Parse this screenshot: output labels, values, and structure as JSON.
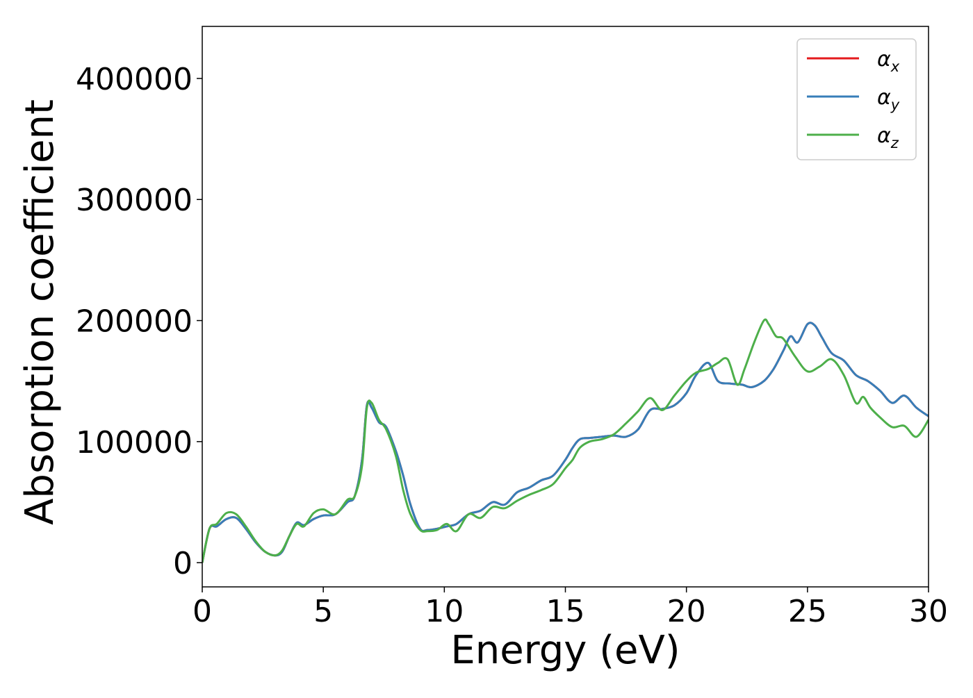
{
  "chart_data": {
    "type": "line",
    "xlabel": "Energy (eV)",
    "ylabel": "Absorption coefficient",
    "xlim": [
      0,
      30
    ],
    "ylim": [
      -20000,
      443000
    ],
    "x_ticks": [
      0,
      5,
      10,
      15,
      20,
      25,
      30
    ],
    "y_ticks": [
      0,
      100000,
      200000,
      300000,
      400000
    ],
    "x_tick_labels": [
      "0",
      "5",
      "10",
      "15",
      "20",
      "25",
      "30"
    ],
    "y_tick_labels": [
      "0",
      "100000",
      "200000",
      "300000",
      "400000"
    ],
    "grid": false,
    "legend_position": "top-right",
    "series": [
      {
        "name": "α_x",
        "legend_symbol": "α",
        "legend_subscript": "x",
        "color": "#e41a1c",
        "x": [
          0,
          0.3,
          0.6,
          1.0,
          1.4,
          1.8,
          2.2,
          2.6,
          3.0,
          3.3,
          3.6,
          3.9,
          4.2,
          4.6,
          5.0,
          5.5,
          6.0,
          6.3,
          6.6,
          6.8,
          7.0,
          7.3,
          7.6,
          8.0,
          8.3,
          8.6,
          9.0,
          9.3,
          9.7,
          10.1,
          10.5,
          11.0,
          11.5,
          12.0,
          12.5,
          13.0,
          13.5,
          14.0,
          14.5,
          15.0,
          15.3,
          15.6,
          16.0,
          16.5,
          17.0,
          17.5,
          18.0,
          18.5,
          19.0,
          19.5,
          20.0,
          20.4,
          20.9,
          21.3,
          21.8,
          22.3,
          22.7,
          23.2,
          23.6,
          24.0,
          24.3,
          24.6,
          25.0,
          25.3,
          25.6,
          26.0,
          26.5,
          27.0,
          27.5,
          28.0,
          28.5,
          29.0,
          29.5,
          30.0
        ],
        "y": [
          0,
          28000,
          30000,
          36000,
          37000,
          28000,
          17000,
          9000,
          6000,
          9000,
          22000,
          33000,
          31000,
          36000,
          39000,
          40000,
          50000,
          55000,
          85000,
          130000,
          128000,
          116000,
          112000,
          92000,
          72000,
          48000,
          28000,
          27000,
          28000,
          30000,
          32000,
          40000,
          43000,
          50000,
          48000,
          58000,
          62000,
          68000,
          72000,
          85000,
          95000,
          102000,
          103000,
          104000,
          105000,
          104000,
          110000,
          126000,
          127000,
          130000,
          140000,
          155000,
          165000,
          150000,
          148000,
          147000,
          145000,
          150000,
          160000,
          175000,
          187000,
          182000,
          197000,
          196000,
          186000,
          173000,
          167000,
          155000,
          150000,
          142000,
          132000,
          138000,
          128000,
          121000
        ]
      },
      {
        "name": "α_y",
        "legend_symbol": "α",
        "legend_subscript": "y",
        "color": "#377eb8",
        "x": [
          0,
          0.3,
          0.6,
          1.0,
          1.4,
          1.8,
          2.2,
          2.6,
          3.0,
          3.3,
          3.6,
          3.9,
          4.2,
          4.6,
          5.0,
          5.5,
          6.0,
          6.3,
          6.6,
          6.8,
          7.0,
          7.3,
          7.6,
          8.0,
          8.3,
          8.6,
          9.0,
          9.3,
          9.7,
          10.1,
          10.5,
          11.0,
          11.5,
          12.0,
          12.5,
          13.0,
          13.5,
          14.0,
          14.5,
          15.0,
          15.3,
          15.6,
          16.0,
          16.5,
          17.0,
          17.5,
          18.0,
          18.5,
          19.0,
          19.5,
          20.0,
          20.4,
          20.9,
          21.3,
          21.8,
          22.3,
          22.7,
          23.2,
          23.6,
          24.0,
          24.3,
          24.6,
          25.0,
          25.3,
          25.6,
          26.0,
          26.5,
          27.0,
          27.5,
          28.0,
          28.5,
          29.0,
          29.5,
          30.0
        ],
        "y": [
          0,
          28000,
          30000,
          36000,
          37000,
          28000,
          17000,
          9000,
          6000,
          9000,
          22000,
          33000,
          31000,
          36000,
          39000,
          40000,
          50000,
          55000,
          85000,
          130000,
          128000,
          116000,
          112000,
          92000,
          72000,
          48000,
          28000,
          27000,
          28000,
          30000,
          32000,
          40000,
          43000,
          50000,
          48000,
          58000,
          62000,
          68000,
          72000,
          85000,
          95000,
          102000,
          103000,
          104000,
          105000,
          104000,
          110000,
          126000,
          127000,
          130000,
          140000,
          155000,
          165000,
          150000,
          148000,
          147000,
          145000,
          150000,
          160000,
          175000,
          187000,
          182000,
          197000,
          196000,
          186000,
          173000,
          167000,
          155000,
          150000,
          142000,
          132000,
          138000,
          128000,
          121000
        ]
      },
      {
        "name": "α_z",
        "legend_symbol": "α",
        "legend_subscript": "z",
        "color": "#4daf4a",
        "x": [
          0,
          0.3,
          0.6,
          1.0,
          1.4,
          1.8,
          2.2,
          2.6,
          3.0,
          3.3,
          3.6,
          3.9,
          4.2,
          4.6,
          5.0,
          5.5,
          6.0,
          6.3,
          6.6,
          6.8,
          7.0,
          7.3,
          7.6,
          8.0,
          8.3,
          8.6,
          9.0,
          9.3,
          9.7,
          10.1,
          10.5,
          11.0,
          11.5,
          12.0,
          12.5,
          13.0,
          13.5,
          14.0,
          14.5,
          15.0,
          15.3,
          15.6,
          16.0,
          16.5,
          17.0,
          17.5,
          18.0,
          18.5,
          19.0,
          19.5,
          20.0,
          20.4,
          20.9,
          21.3,
          21.7,
          22.1,
          22.4,
          22.8,
          23.2,
          23.4,
          23.7,
          24.0,
          24.5,
          25.0,
          25.5,
          26.0,
          26.5,
          27.0,
          27.3,
          27.6,
          28.0,
          28.5,
          29.0,
          29.5,
          30.0
        ],
        "y": [
          0,
          28000,
          32000,
          41000,
          40000,
          30000,
          18000,
          9000,
          6000,
          10000,
          22000,
          32000,
          30000,
          41000,
          44000,
          40000,
          52000,
          55000,
          80000,
          128000,
          132000,
          118000,
          110000,
          88000,
          60000,
          40000,
          27000,
          26000,
          27000,
          32000,
          26000,
          40000,
          37000,
          46000,
          45000,
          51000,
          56000,
          60000,
          65000,
          78000,
          85000,
          95000,
          100000,
          102000,
          106000,
          115000,
          125000,
          136000,
          126000,
          138000,
          150000,
          157000,
          160000,
          165000,
          168000,
          147000,
          160000,
          182000,
          200000,
          197000,
          187000,
          185000,
          170000,
          158000,
          162000,
          168000,
          155000,
          132000,
          137000,
          128000,
          120000,
          112000,
          113000,
          104000,
          118000
        ]
      }
    ]
  }
}
